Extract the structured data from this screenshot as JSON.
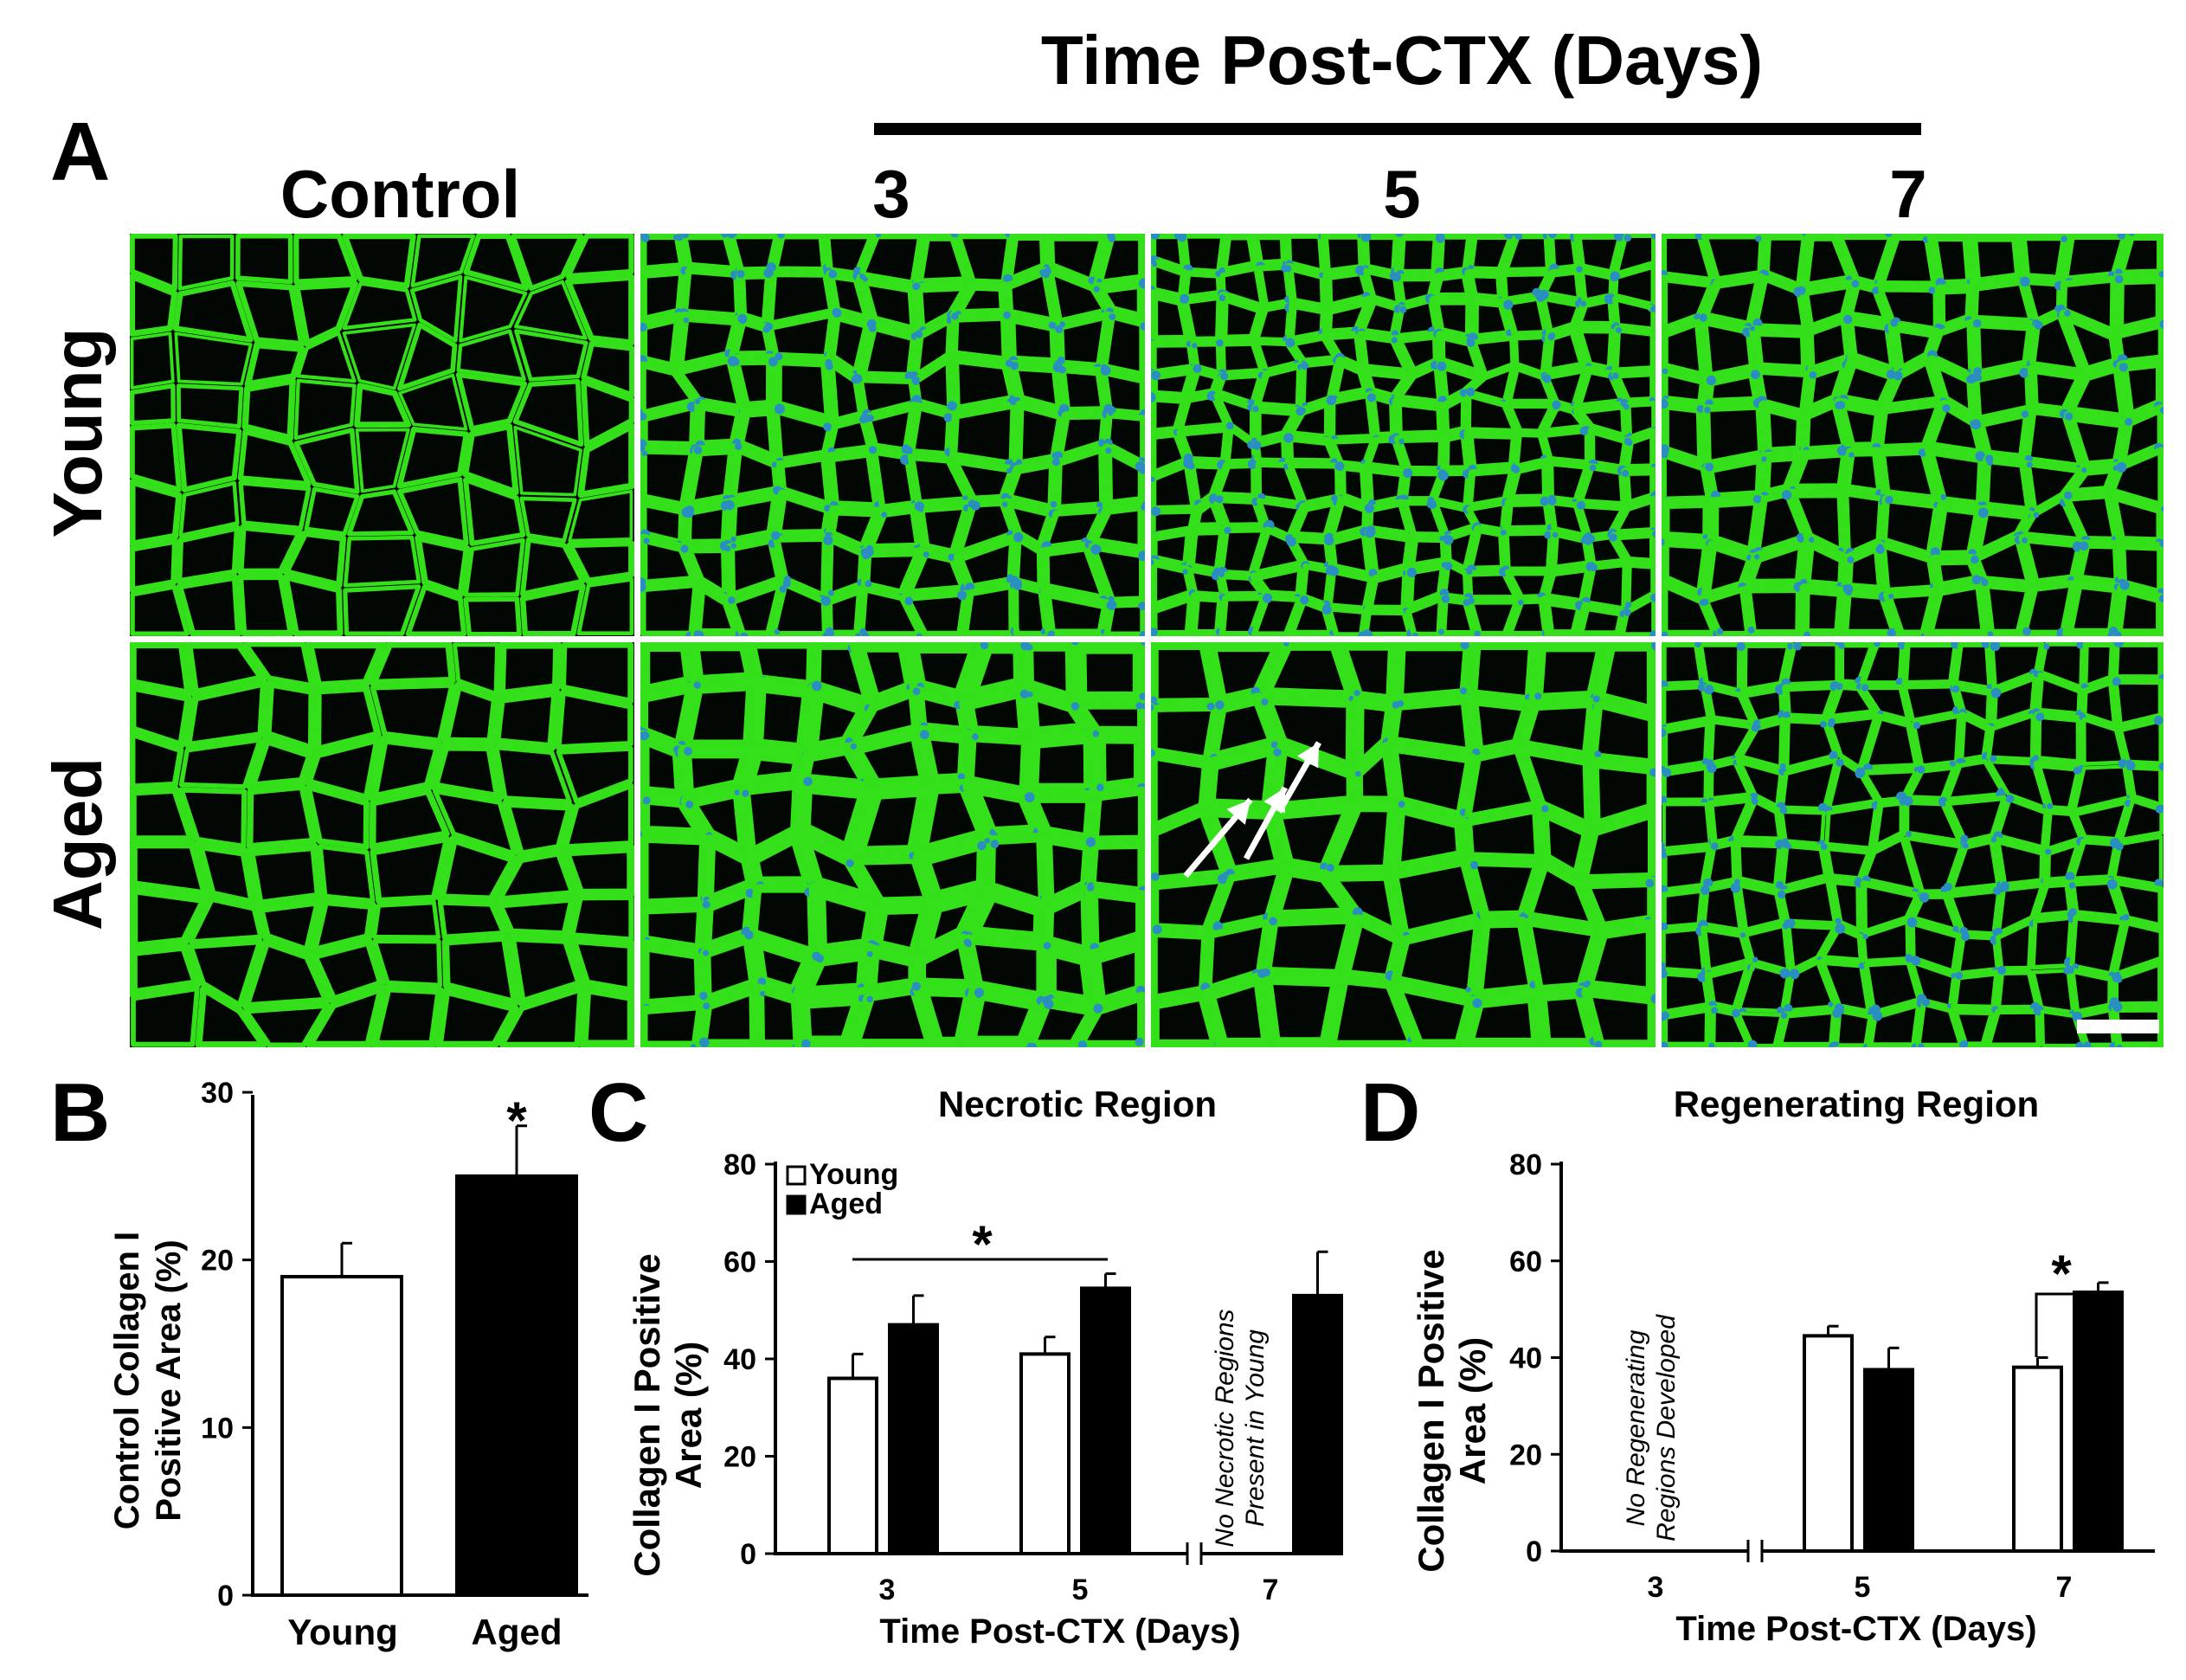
{
  "figure": {
    "time_header": "Time Post-CTX (Days)",
    "panel_a_letter": "A",
    "columns": [
      "Control",
      "3",
      "5",
      "7"
    ],
    "rows": [
      "Young",
      "Aged"
    ],
    "colors": {
      "collagen": "#33e01a",
      "nuclei": "#2a8fc0",
      "background": "#030703",
      "bar_young": "#ffffff",
      "bar_aged": "#000000"
    }
  },
  "chart_data": [
    {
      "panel": "B",
      "type": "bar",
      "title": "",
      "ylabel_lines": [
        "Control Collagen I",
        "Positive Area (%)"
      ],
      "xlabel": "",
      "categories": [
        "Young",
        "Aged"
      ],
      "values": [
        19,
        25
      ],
      "errors": [
        2,
        3
      ],
      "bar_colors": [
        "#ffffff",
        "#000000"
      ],
      "ylim": [
        0,
        30
      ],
      "yticks": [
        "0",
        "10",
        "20",
        "30"
      ],
      "significance": "*"
    },
    {
      "panel": "C",
      "type": "bar",
      "title": "Necrotic Region",
      "ylabel_lines": [
        "Collagen I Positive",
        "Area (%)"
      ],
      "xlabel": "Time Post-CTX (Days)",
      "categories": [
        "3",
        "5",
        "7"
      ],
      "series": [
        {
          "name": "Young",
          "values": [
            36,
            41,
            null
          ],
          "errors": [
            5,
            3.5,
            null
          ]
        },
        {
          "name": "Aged",
          "values": [
            47,
            54.5,
            53
          ],
          "errors": [
            6,
            3,
            9
          ]
        }
      ],
      "legend": [
        "Young",
        "Aged"
      ],
      "legend_position": "top-left",
      "ylim": [
        0,
        80
      ],
      "yticks": [
        "0",
        "20",
        "40",
        "60",
        "80"
      ],
      "annotation_lines": [
        "No Necrotic Regions",
        "Present in Young"
      ],
      "significance": "*"
    },
    {
      "panel": "D",
      "type": "bar",
      "title": "Regenerating Region",
      "ylabel_lines": [
        "Collagen I Positive",
        "Area (%)"
      ],
      "xlabel": "Time Post-CTX (Days)",
      "categories": [
        "3",
        "5",
        "7"
      ],
      "series": [
        {
          "name": "Young",
          "values": [
            null,
            44.5,
            38
          ],
          "errors": [
            null,
            2,
            2
          ]
        },
        {
          "name": "Aged",
          "values": [
            null,
            37.5,
            53.5
          ],
          "errors": [
            null,
            4.5,
            2
          ]
        }
      ],
      "ylim": [
        0,
        80
      ],
      "yticks": [
        "0",
        "20",
        "40",
        "60",
        "80"
      ],
      "annotation_lines": [
        "No Regenerating",
        "Regions Developed"
      ],
      "significance": "*"
    }
  ]
}
